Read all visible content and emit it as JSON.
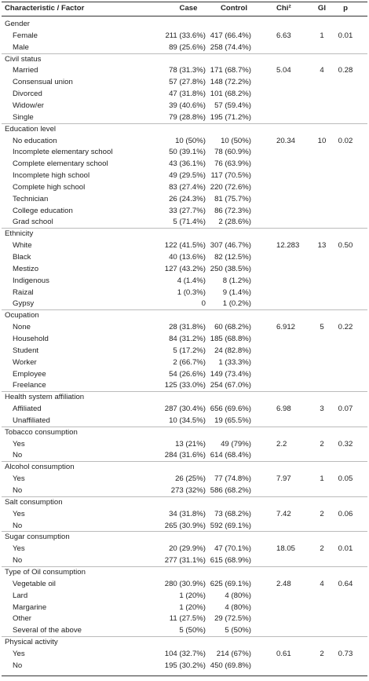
{
  "table": {
    "header": [
      "Characteristic / Factor",
      "Case",
      "Control",
      "Chi²",
      "Gl",
      "p"
    ],
    "groups": [
      {
        "label": "Gender",
        "chi": "6.63",
        "gl": "1",
        "p": "0.01",
        "rows": [
          [
            "Female",
            "211 (33.6%)",
            "417 (66.4%)"
          ],
          [
            "Male",
            "89 (25.6%)",
            "258 (74.4%)"
          ]
        ]
      },
      {
        "label": "Civil status",
        "chi": "5.04",
        "gl": "4",
        "p": "0.28",
        "rows": [
          [
            "Married",
            "78 (31.3%)",
            "171 (68.7%)"
          ],
          [
            "Consensual union",
            "57 (27.8%)",
            "148 (72.2%)"
          ],
          [
            "Divorced",
            "47 (31.8%)",
            "101 (68.2%)"
          ],
          [
            "Widow/er",
            "39 (40.6%)",
            "57 (59.4%)"
          ],
          [
            "Single",
            "79 (28.8%)",
            "195 (71.2%)"
          ]
        ]
      },
      {
        "label": "Education level",
        "chi": "20.34",
        "gl": "10",
        "p": "0.02",
        "rows": [
          [
            "No education",
            "10 (50%)",
            "10 (50%)"
          ],
          [
            "Incomplete elementary school",
            "50 (39.1%)",
            "78 (60.9%)"
          ],
          [
            "Complete elementary  school",
            "43 (36.1%)",
            "76 (63.9%)"
          ],
          [
            "Incomplete high school",
            "49 (29.5%)",
            "117 (70.5%)"
          ],
          [
            "Complete high school",
            "83 (27.4%)",
            "220 (72.6%)"
          ],
          [
            "Technician",
            "26 (24.3%)",
            "81 (75.7%)"
          ],
          [
            "College education",
            "33 (27.7%)",
            "86 (72.3%)"
          ],
          [
            "Grad school",
            "5 (71.4%)",
            "2 (28.6%)"
          ]
        ]
      },
      {
        "label": "Ethnicity",
        "chi": "12.283",
        "gl": "13",
        "p": "0.50",
        "rows": [
          [
            "White",
            "122 (41.5%)",
            "307 (46.7%)"
          ],
          [
            "Black",
            "40 (13.6%)",
            "82 (12.5%)"
          ],
          [
            "Mestizo",
            "127 (43.2%)",
            "250 (38.5%)"
          ],
          [
            "Indigenous",
            "4 (1.4%)",
            "8 (1.2%)"
          ],
          [
            "Raizal",
            "1 (0.3%)",
            "9 (1.4%)"
          ],
          [
            "Gypsy",
            "0",
            "1 (0.2%)"
          ]
        ]
      },
      {
        "label": "Ocupation",
        "chi": "6.912",
        "gl": "5",
        "p": "0.22",
        "rows": [
          [
            "None",
            "28 (31.8%)",
            "60 (68.2%)"
          ],
          [
            "Household",
            "84 (31.2%)",
            "185 (68.8%)"
          ],
          [
            "Student",
            "5 (17.2%)",
            "24 (82.8%)"
          ],
          [
            "Worker",
            "2 (66.7%)",
            "1 (33.3%)"
          ],
          [
            "Employee",
            "54 (26.6%)",
            "149 (73.4%)"
          ],
          [
            "Freelance",
            "125 (33.0%)",
            "254 (67.0%)"
          ]
        ]
      },
      {
        "label": "Health system affiliation",
        "chi": "6.98",
        "gl": "3",
        "p": "0.07",
        "rows": [
          [
            "Affiliated",
            "287 (30.4%)",
            "656 (69.6%)"
          ],
          [
            "Unaffiliated",
            "10 (34.5%)",
            "19 (65.5%)"
          ]
        ]
      },
      {
        "label": "Tobacco consumption",
        "chi": "2.2",
        "gl": "2",
        "p": "0.32",
        "rows": [
          [
            "Yes",
            "13 (21%)",
            "49 (79%)"
          ],
          [
            "No",
            "284 (31.6%)",
            "614 (68.4%)"
          ]
        ]
      },
      {
        "label": "Alcohol consumption",
        "chi": "7.97",
        "gl": "1",
        "p": "0.05",
        "rows": [
          [
            "Yes",
            "26 (25%)",
            "77 (74.8%)"
          ],
          [
            "No",
            "273 (32%)",
            "586 (68.2%)"
          ]
        ]
      },
      {
        "label": "Salt consumption",
        "chi": "7.42",
        "gl": "2",
        "p": "0.06",
        "rows": [
          [
            "Yes",
            "34 (31.8%)",
            "73 (68.2%)"
          ],
          [
            "No",
            "265 (30.9%)",
            "592 (69.1%)"
          ]
        ]
      },
      {
        "label": "Sugar consumption",
        "chi": "18.05",
        "gl": "2",
        "p": "0.01",
        "rows": [
          [
            "Yes",
            "20 (29.9%)",
            "47 (70.1%)"
          ],
          [
            "No",
            "277 (31.1%)",
            "615 (68.9%)"
          ]
        ]
      },
      {
        "label": "Type of Oil consumption",
        "chi": "2.48",
        "gl": "4",
        "p": "0.64",
        "rows": [
          [
            "Vegetable oil",
            "280 (30.9%)",
            "625 (69.1%)"
          ],
          [
            "Lard",
            "1 (20%)",
            "4 (80%)"
          ],
          [
            "Margarine",
            "1 (20%)",
            "4 (80%)"
          ],
          [
            "Other",
            "11 (27.5%)",
            "29 (72.5%)"
          ],
          [
            "Several of the above",
            "5 (50%)",
            "5 (50%)"
          ]
        ]
      },
      {
        "label": "Physical activity",
        "chi": "0.61",
        "gl": "2",
        "p": "0.73",
        "rows": [
          [
            "Yes",
            "104 (32.7%)",
            "214 (67%)"
          ],
          [
            "No",
            "195 (30.2%)",
            "450 (69.8%)"
          ]
        ]
      }
    ]
  }
}
